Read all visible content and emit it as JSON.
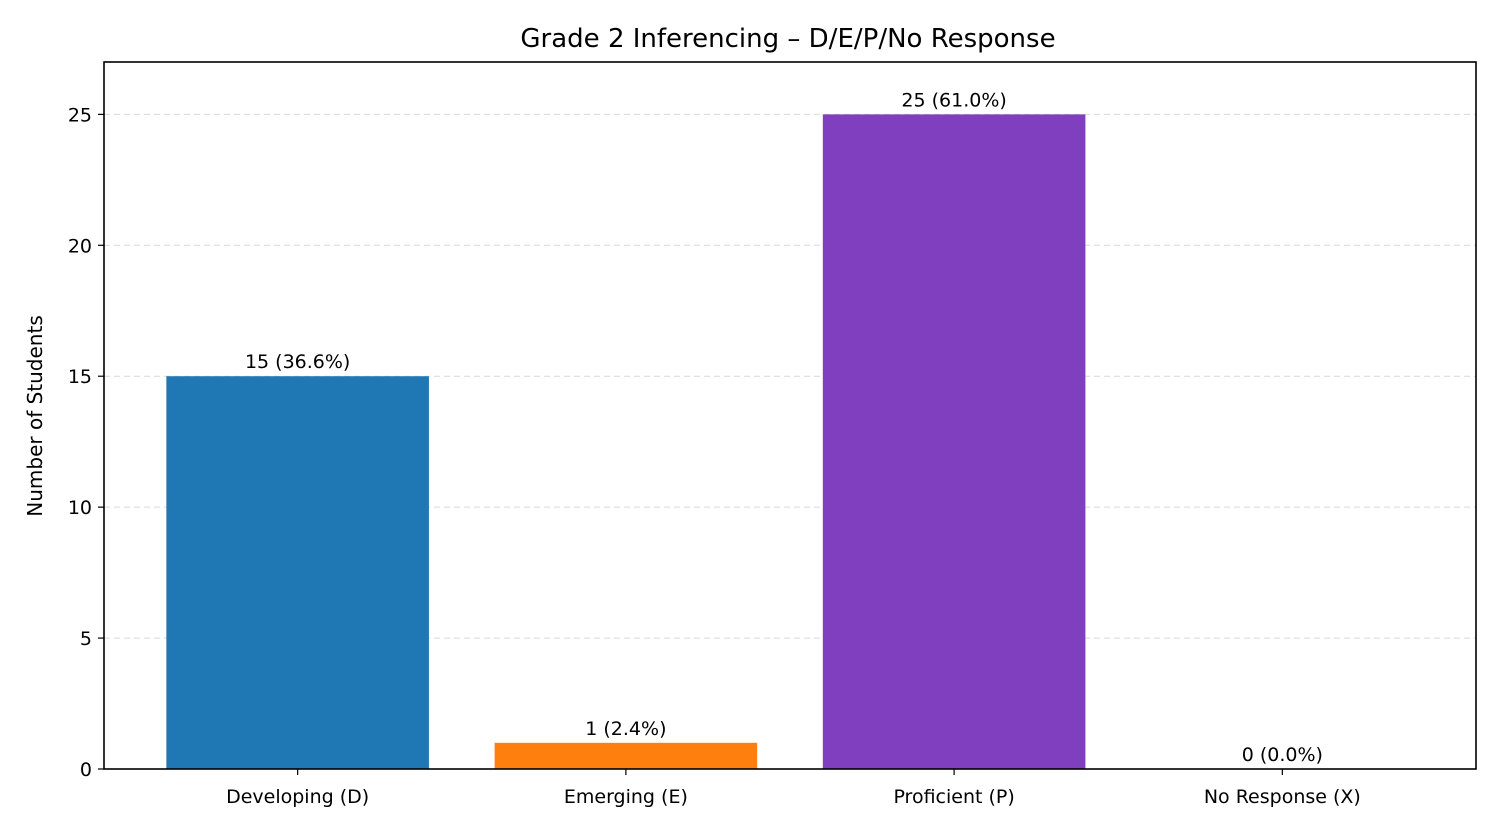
{
  "chart_data": {
    "type": "bar",
    "title": "Grade 2 Inferencing – D/E/P/No Response",
    "xlabel": "",
    "ylabel": "Number of Students",
    "categories": [
      "Developing (D)",
      "Emerging (E)",
      "Proficient (P)",
      "No Response (X)"
    ],
    "values": [
      15,
      1,
      25,
      0
    ],
    "data_labels": [
      "15 (36.6%)",
      "1 (2.4%)",
      "25 (61.0%)",
      "0 (0.0%)"
    ],
    "colors": [
      "#1f77b4",
      "#ff7f0e",
      "#7f3fbe",
      "#d62728"
    ],
    "ylim": [
      0,
      27
    ],
    "xlim": [
      -0.59,
      3.59
    ],
    "yticks": [
      0,
      5,
      10,
      15,
      20,
      25
    ],
    "grid": "y-dashed",
    "legend": "none"
  }
}
